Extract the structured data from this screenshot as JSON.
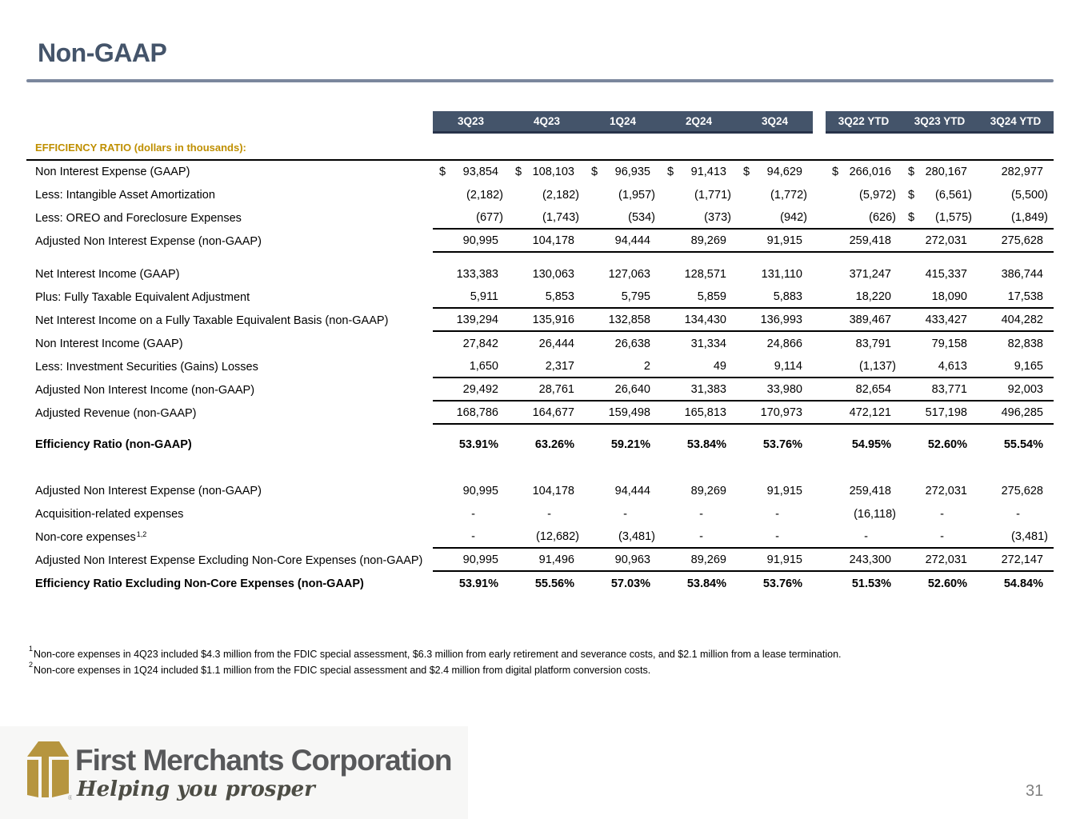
{
  "slide": {
    "title": "Non-GAAP",
    "page_number": "31"
  },
  "colors": {
    "accent_navy": "#44546A",
    "rule_blue": "#7B879D",
    "heading_gold": "#BF8F00",
    "logo_gold": "#B6953F",
    "logo_text_gray": "#57585A"
  },
  "table": {
    "heading": "EFFICIENCY RATIO (dollars in thousands):",
    "column_headers": [
      "3Q23",
      "4Q23",
      "1Q24",
      "2Q24",
      "3Q24",
      "3Q22 YTD",
      "3Q23 YTD",
      "3Q24 YTD"
    ],
    "sections": [
      {
        "rows": [
          {
            "label": "Non Interest Expense (GAAP)",
            "cells": [
              [
                "$",
                "93,854"
              ],
              [
                "$",
                "108,103"
              ],
              [
                "$",
                "96,935"
              ],
              [
                "$",
                "91,413"
              ],
              [
                "$",
                "94,629"
              ],
              [
                "$",
                "266,016"
              ],
              [
                "$",
                "280,167"
              ],
              [
                "",
                "282,977"
              ]
            ]
          },
          {
            "label": "Less:  Intangible Asset Amortization",
            "cells": [
              [
                "",
                "(2,182)"
              ],
              [
                "",
                "(2,182)"
              ],
              [
                "",
                "(1,957)"
              ],
              [
                "",
                "(1,771)"
              ],
              [
                "",
                "(1,772)"
              ],
              [
                "",
                "(5,972)"
              ],
              [
                "$",
                "(6,561)"
              ],
              [
                "",
                "(5,500)"
              ]
            ]
          },
          {
            "label": "Less:  OREO and Foreclosure Expenses",
            "underline": true,
            "cells": [
              [
                "",
                "(677)"
              ],
              [
                "",
                "(1,743)"
              ],
              [
                "",
                "(534)"
              ],
              [
                "",
                "(373)"
              ],
              [
                "",
                "(942)"
              ],
              [
                "",
                "(626)"
              ],
              [
                "$",
                "(1,575)"
              ],
              [
                "",
                "(1,849)"
              ]
            ]
          },
          {
            "label": "Adjusted Non Interest Expense (non-GAAP)",
            "underline": true,
            "cells": [
              [
                "",
                "90,995"
              ],
              [
                "",
                "104,178"
              ],
              [
                "",
                "94,444"
              ],
              [
                "",
                "89,269"
              ],
              [
                "",
                "91,915"
              ],
              [
                "",
                "259,418"
              ],
              [
                "",
                "272,031"
              ],
              [
                "",
                "275,628"
              ]
            ]
          }
        ]
      },
      {
        "rows": [
          {
            "label": "Net Interest Income (GAAP)",
            "cells": [
              [
                "",
                "133,383"
              ],
              [
                "",
                "130,063"
              ],
              [
                "",
                "127,063"
              ],
              [
                "",
                "128,571"
              ],
              [
                "",
                "131,110"
              ],
              [
                "",
                "371,247"
              ],
              [
                "",
                "415,337"
              ],
              [
                "",
                "386,744"
              ]
            ]
          },
          {
            "label": "Plus:  Fully Taxable Equivalent Adjustment",
            "underline": true,
            "cells": [
              [
                "",
                "5,911"
              ],
              [
                "",
                "5,853"
              ],
              [
                "",
                "5,795"
              ],
              [
                "",
                "5,859"
              ],
              [
                "",
                "5,883"
              ],
              [
                "",
                "18,220"
              ],
              [
                "",
                "18,090"
              ],
              [
                "",
                "17,538"
              ]
            ]
          },
          {
            "label": "Net Interest Income on a Fully Taxable Equivalent Basis (non-GAAP)",
            "underline": true,
            "cells": [
              [
                "",
                "139,294"
              ],
              [
                "",
                "135,916"
              ],
              [
                "",
                "132,858"
              ],
              [
                "",
                "134,430"
              ],
              [
                "",
                "136,993"
              ],
              [
                "",
                "389,467"
              ],
              [
                "",
                "433,427"
              ],
              [
                "",
                "404,282"
              ]
            ]
          },
          {
            "label": "Non Interest Income (GAAP)",
            "cells": [
              [
                "",
                "27,842"
              ],
              [
                "",
                "26,444"
              ],
              [
                "",
                "26,638"
              ],
              [
                "",
                "31,334"
              ],
              [
                "",
                "24,866"
              ],
              [
                "",
                "83,791"
              ],
              [
                "",
                "79,158"
              ],
              [
                "",
                "82,838"
              ]
            ]
          },
          {
            "label": "Less:  Investment Securities (Gains) Losses",
            "underline": true,
            "cells": [
              [
                "",
                "1,650"
              ],
              [
                "",
                "2,317"
              ],
              [
                "",
                "2"
              ],
              [
                "",
                "49"
              ],
              [
                "",
                "9,114"
              ],
              [
                "",
                "(1,137)"
              ],
              [
                "",
                "4,613"
              ],
              [
                "",
                "9,165"
              ]
            ]
          },
          {
            "label": "Adjusted Non Interest Income (non-GAAP)",
            "underline": true,
            "cells": [
              [
                "",
                "29,492"
              ],
              [
                "",
                "28,761"
              ],
              [
                "",
                "26,640"
              ],
              [
                "",
                "31,383"
              ],
              [
                "",
                "33,980"
              ],
              [
                "",
                "82,654"
              ],
              [
                "",
                "83,771"
              ],
              [
                "",
                "92,003"
              ]
            ]
          },
          {
            "label": "Adjusted Revenue (non-GAAP)",
            "underline": true,
            "cells": [
              [
                "",
                "168,786"
              ],
              [
                "",
                "164,677"
              ],
              [
                "",
                "159,498"
              ],
              [
                "",
                "165,813"
              ],
              [
                "",
                "170,973"
              ],
              [
                "",
                "472,121"
              ],
              [
                "",
                "517,198"
              ],
              [
                "",
                "496,285"
              ]
            ]
          }
        ]
      },
      {
        "rows": [
          {
            "label": "Efficiency Ratio (non-GAAP)",
            "bold": true,
            "cells": [
              [
                "",
                "53.91%"
              ],
              [
                "",
                "63.26%"
              ],
              [
                "",
                "59.21%"
              ],
              [
                "",
                "53.84%"
              ],
              [
                "",
                "53.76%"
              ],
              [
                "",
                "54.95%"
              ],
              [
                "",
                "52.60%"
              ],
              [
                "",
                "55.54%"
              ]
            ]
          }
        ]
      },
      {
        "rows": [
          {
            "label": "Adjusted Non Interest Expense (non-GAAP)",
            "cells": [
              [
                "",
                "90,995"
              ],
              [
                "",
                "104,178"
              ],
              [
                "",
                "94,444"
              ],
              [
                "",
                "89,269"
              ],
              [
                "",
                "91,915"
              ],
              [
                "",
                "259,418"
              ],
              [
                "",
                "272,031"
              ],
              [
                "",
                "275,628"
              ]
            ]
          },
          {
            "label": "Acquisition-related expenses",
            "cells": [
              [
                "",
                "-"
              ],
              [
                "",
                "-"
              ],
              [
                "",
                "-"
              ],
              [
                "",
                "-"
              ],
              [
                "",
                "-"
              ],
              [
                "",
                "(16,118)"
              ],
              [
                "",
                "-"
              ],
              [
                "",
                "-"
              ]
            ]
          },
          {
            "label": "Non-core expenses",
            "sup": "1,2",
            "underline": true,
            "cells": [
              [
                "",
                "-"
              ],
              [
                "",
                "(12,682)"
              ],
              [
                "",
                "(3,481)"
              ],
              [
                "",
                "-"
              ],
              [
                "",
                "-"
              ],
              [
                "",
                "-"
              ],
              [
                "",
                "-"
              ],
              [
                "",
                "(3,481)"
              ]
            ]
          },
          {
            "label": "Adjusted Non Interest Expense Excluding Non-Core Expenses (non-GAAP)",
            "underline": true,
            "cells": [
              [
                "",
                "90,995"
              ],
              [
                "",
                "91,496"
              ],
              [
                "",
                "90,963"
              ],
              [
                "",
                "89,269"
              ],
              [
                "",
                "91,915"
              ],
              [
                "",
                "243,300"
              ],
              [
                "",
                "272,031"
              ],
              [
                "",
                "272,147"
              ]
            ]
          },
          {
            "label": "Efficiency Ratio Excluding Non-Core Expenses (non-GAAP)",
            "bold": true,
            "cells": [
              [
                "",
                "53.91%"
              ],
              [
                "",
                "55.56%"
              ],
              [
                "",
                "57.03%"
              ],
              [
                "",
                "53.84%"
              ],
              [
                "",
                "53.76%"
              ],
              [
                "",
                "51.53%"
              ],
              [
                "",
                "52.60%"
              ],
              [
                "",
                "54.84%"
              ]
            ]
          }
        ]
      }
    ]
  },
  "footnotes": [
    {
      "sup": "1",
      "text": "Non-core expenses in 4Q23 included $4.3 million from the FDIC special assessment, $6.3 million from early retirement and severance costs, and $2.1 million from a lease termination."
    },
    {
      "sup": "2",
      "text": "Non-core expenses in 1Q24 included $1.1 million from the FDIC special assessment and $2.4 million from digital platform conversion costs."
    }
  ],
  "logo": {
    "name": "First Merchants Corporation",
    "tagline": "Helping you prosper",
    "icon": "gold-box-logo-icon",
    "registered_mark": "®"
  }
}
